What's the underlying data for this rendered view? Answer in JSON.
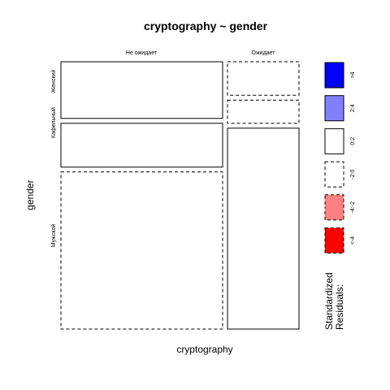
{
  "chart_data": {
    "type": "mosaic",
    "title": "cryptography ~ gender",
    "xlabel": "cryptography",
    "ylabel": "gender",
    "columns": [
      "Не ожидает",
      "Ожидает"
    ],
    "rows": [
      "Женский",
      "Кафельный",
      "Мужской"
    ],
    "cells": [
      {
        "column": "Не ожидает",
        "row": "Женский",
        "share_of_column": 0.22,
        "residual_class": "0:2",
        "fill": "#ffffff",
        "dashed": false
      },
      {
        "column": "Не ожидает",
        "row": "Кафельный",
        "share_of_column": 0.17,
        "residual_class": "0:2",
        "fill": "#ffffff",
        "dashed": false
      },
      {
        "column": "Не ожидает",
        "row": "Мужской",
        "share_of_column": 0.61,
        "residual_class": "-2:0",
        "fill": "#ffffff",
        "dashed": true
      },
      {
        "column": "Ожидает",
        "row": "Женский",
        "share_of_column": 0.13,
        "residual_class": "-2:0",
        "fill": "#ffffff",
        "dashed": true
      },
      {
        "column": "Ожидает",
        "row": "Кафельный",
        "share_of_column": 0.09,
        "residual_class": "-2:0",
        "fill": "#ffffff",
        "dashed": true
      },
      {
        "column": "Ожидает",
        "row": "Мужской",
        "share_of_column": 0.78,
        "residual_class": "0:2",
        "fill": "#ffffff",
        "dashed": false
      }
    ],
    "column_shares": [
      0.78,
      0.22
    ],
    "legend": {
      "title_lines": [
        "Standardized",
        "Residuals:"
      ],
      "placement": "right",
      "entries": [
        {
          "label": ">4",
          "fill": "#0000ff",
          "dashed": false
        },
        {
          "label": "2:4",
          "fill": "#8080ff",
          "dashed": false
        },
        {
          "label": "0:2",
          "fill": "#ffffff",
          "dashed": false
        },
        {
          "label": "-2:0",
          "fill": "#ffffff",
          "dashed": true
        },
        {
          "label": "-4:-2",
          "fill": "#ff8080",
          "dashed": true
        },
        {
          "label": "<-4",
          "fill": "#ff0000",
          "dashed": true
        }
      ]
    }
  }
}
